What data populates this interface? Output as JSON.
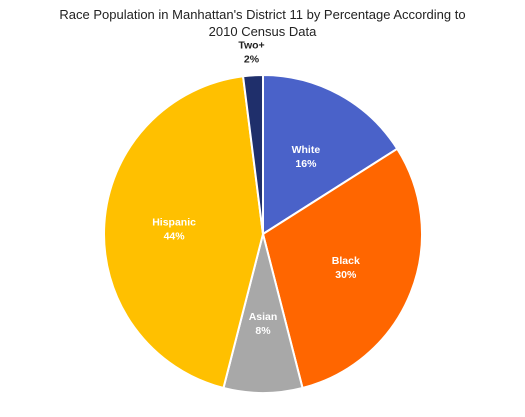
{
  "chart_data": {
    "type": "pie",
    "title_lines": [
      "Race Population  in Manhattan's District 11 by Percentage According to",
      "2010 Census Data"
    ],
    "slices": [
      {
        "category": "White",
        "value": 16,
        "label": "16%",
        "color": "#4a62c9",
        "label_color": "#ffffff"
      },
      {
        "category": "Black",
        "value": 30,
        "label": "30%",
        "color": "#ff6600",
        "label_color": "#ffffff"
      },
      {
        "category": "Asian",
        "value": 8,
        "label": "8%",
        "color": "#a8a8a8",
        "label_color": "#ffffff"
      },
      {
        "category": "Hispanic",
        "value": 44,
        "label": "44%",
        "color": "#ffc000",
        "label_color": "#ffffff"
      },
      {
        "category": "Two+",
        "value": 2,
        "label": "2%",
        "color": "#1f2f6b",
        "label_color": "#222222"
      }
    ],
    "start_angle_deg": 0,
    "direction": "clockwise"
  }
}
